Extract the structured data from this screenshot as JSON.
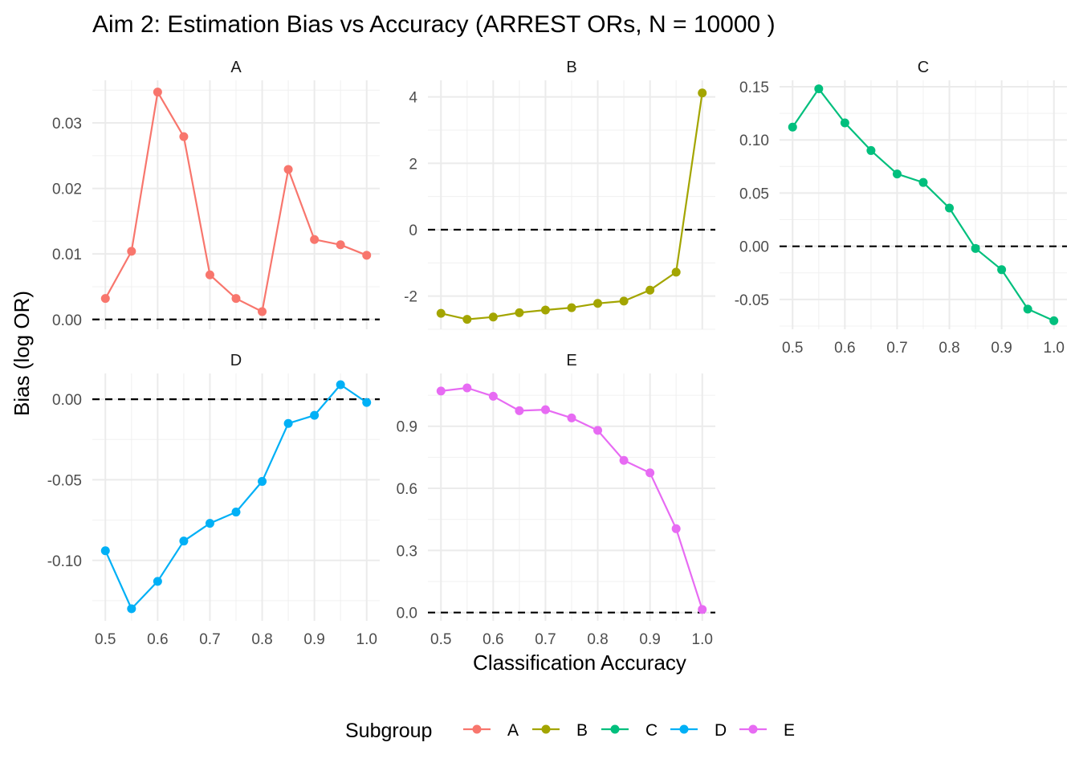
{
  "chart_data": {
    "type": "line",
    "title": "Aim 2: Estimation Bias vs Accuracy (ARREST ORs, N = 10000 )",
    "xlabel": "Classification Accuracy",
    "ylabel": "Bias (log OR)",
    "grid": true,
    "reference_line": {
      "y": 0,
      "style": "dashed"
    },
    "legend": {
      "title": "Subgroup",
      "position": "bottom",
      "entries": [
        "A",
        "B",
        "C",
        "D",
        "E"
      ]
    },
    "x": [
      0.5,
      0.55,
      0.6,
      0.65,
      0.7,
      0.75,
      0.8,
      0.85,
      0.9,
      0.95,
      1.0
    ],
    "x_ticks": [
      "0.5",
      "0.6",
      "0.7",
      "0.8",
      "0.9",
      "1.0"
    ],
    "panels": [
      {
        "name": "A",
        "color": "#F8766D",
        "ylim": [
          -0.0015,
          0.0365
        ],
        "y_ticks": [
          "0.00",
          "0.01",
          "0.02",
          "0.03"
        ],
        "y_tick_values": [
          0,
          0.01,
          0.02,
          0.03
        ],
        "values": [
          0.0032,
          0.0104,
          0.0347,
          0.0279,
          0.0068,
          0.0032,
          0.0012,
          0.0229,
          0.0122,
          0.0114,
          0.0098
        ]
      },
      {
        "name": "B",
        "color": "#A3A500",
        "ylim": [
          -3.0,
          4.5
        ],
        "y_ticks": [
          "-2",
          "0",
          "2",
          "4"
        ],
        "y_tick_values": [
          -2,
          0,
          2,
          4
        ],
        "values": [
          -2.52,
          -2.7,
          -2.63,
          -2.5,
          -2.42,
          -2.35,
          -2.22,
          -2.15,
          -1.82,
          -1.28,
          4.12
        ]
      },
      {
        "name": "C",
        "color": "#00BF7D",
        "ylim": [
          -0.078,
          0.156
        ],
        "y_ticks": [
          "-0.05",
          "0.00",
          "0.05",
          "0.10",
          "0.15"
        ],
        "y_tick_values": [
          -0.05,
          0,
          0.05,
          0.1,
          0.15
        ],
        "values": [
          0.112,
          0.148,
          0.116,
          0.09,
          0.068,
          0.06,
          0.036,
          -0.002,
          -0.022,
          -0.059,
          -0.07
        ]
      },
      {
        "name": "D",
        "color": "#00B0F6",
        "ylim": [
          -0.1375,
          0.016
        ],
        "y_ticks": [
          "-0.10",
          "-0.05",
          "0.00"
        ],
        "y_tick_values": [
          -0.1,
          -0.05,
          0
        ],
        "values": [
          -0.094,
          -0.13,
          -0.113,
          -0.088,
          -0.077,
          -0.07,
          -0.051,
          -0.015,
          -0.01,
          0.009,
          -0.002
        ]
      },
      {
        "name": "E",
        "color": "#E76BF3",
        "ylim": [
          -0.04,
          1.155
        ],
        "y_ticks": [
          "0.0",
          "0.3",
          "0.6",
          "0.9"
        ],
        "y_tick_values": [
          0,
          0.3,
          0.6,
          0.9
        ],
        "values": [
          1.07,
          1.085,
          1.045,
          0.975,
          0.98,
          0.94,
          0.88,
          0.735,
          0.675,
          0.405,
          0.015
        ]
      }
    ]
  }
}
